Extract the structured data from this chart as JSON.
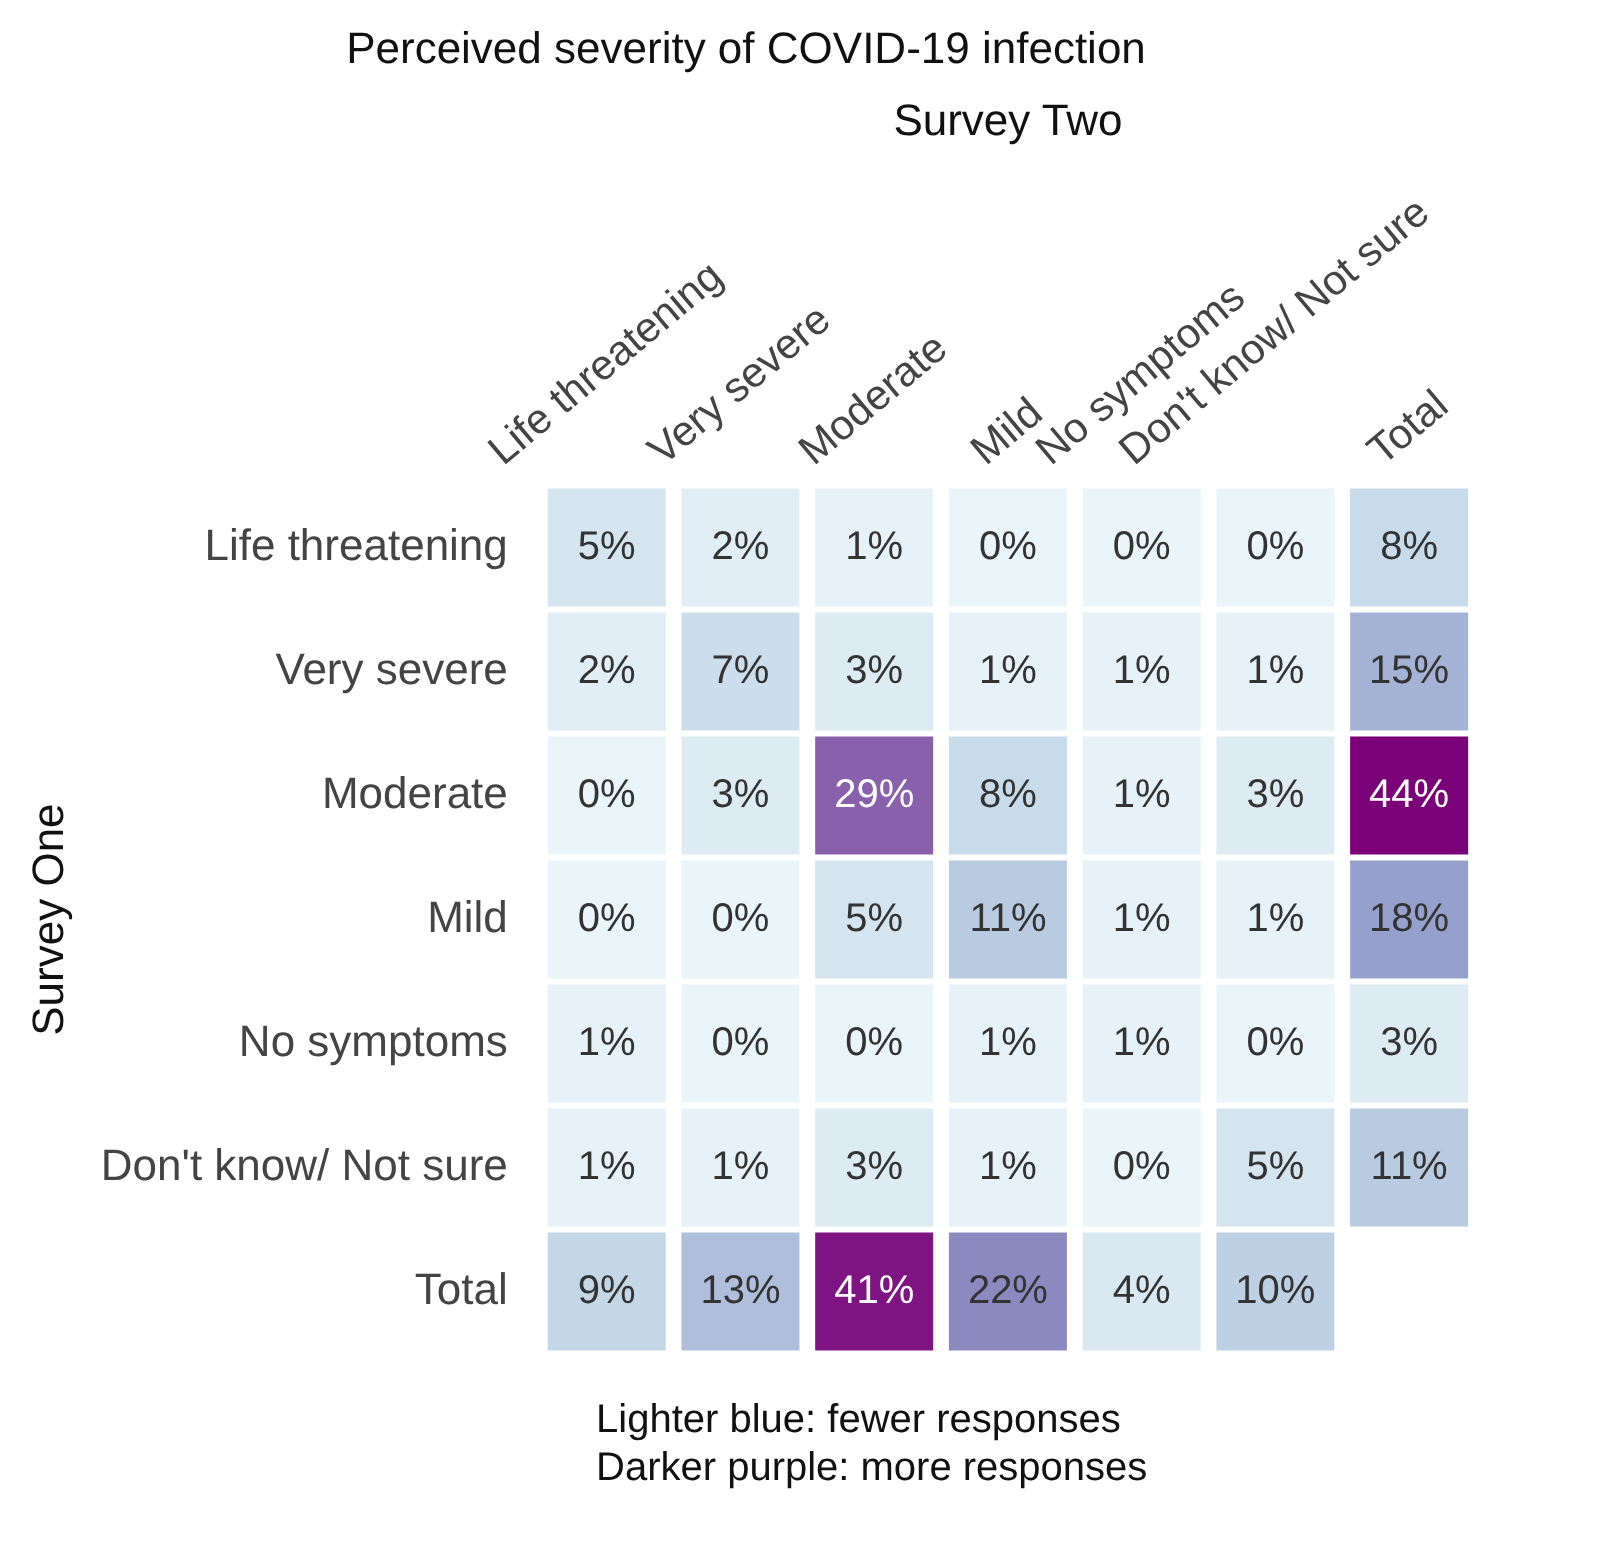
{
  "chart_data": {
    "type": "heatmap",
    "title": "Perceived severity of COVID-19 infection",
    "xlabel": "Survey Two",
    "ylabel": "Survey One",
    "categories": [
      "Life threatening",
      "Very severe",
      "Moderate",
      "Mild",
      "No symptoms",
      "Don't know/ Not sure",
      "Total"
    ],
    "y_categories": [
      "Life threatening",
      "Very severe",
      "Moderate",
      "Mild",
      "No symptoms",
      "Don't know/ Not sure",
      "Total"
    ],
    "cells": [
      [
        5,
        2,
        1,
        0,
        0,
        0,
        8
      ],
      [
        2,
        7,
        3,
        1,
        1,
        1,
        15
      ],
      [
        0,
        3,
        29,
        8,
        1,
        3,
        44
      ],
      [
        0,
        0,
        5,
        11,
        1,
        1,
        18
      ],
      [
        1,
        0,
        0,
        1,
        1,
        0,
        3
      ],
      [
        1,
        1,
        3,
        1,
        0,
        5,
        11
      ],
      [
        9,
        13,
        41,
        22,
        4,
        10,
        null
      ]
    ],
    "cell_labels": [
      [
        "5%",
        "2%",
        "1%",
        "0%",
        "0%",
        "0%",
        "8%"
      ],
      [
        "2%",
        "7%",
        "3%",
        "1%",
        "1%",
        "1%",
        "15%"
      ],
      [
        "0%",
        "3%",
        "29%",
        "8%",
        "1%",
        "3%",
        "44%"
      ],
      [
        "0%",
        "0%",
        "5%",
        "11%",
        "1%",
        "1%",
        "18%"
      ],
      [
        "1%",
        "0%",
        "0%",
        "1%",
        "1%",
        "0%",
        "3%"
      ],
      [
        "1%",
        "1%",
        "3%",
        "1%",
        "0%",
        "5%",
        "11%"
      ],
      [
        "9%",
        "13%",
        "41%",
        "22%",
        "4%",
        "10%",
        null
      ]
    ],
    "annotations": [
      "Lighter blue: fewer responses",
      "Darker purple: more responses"
    ]
  }
}
